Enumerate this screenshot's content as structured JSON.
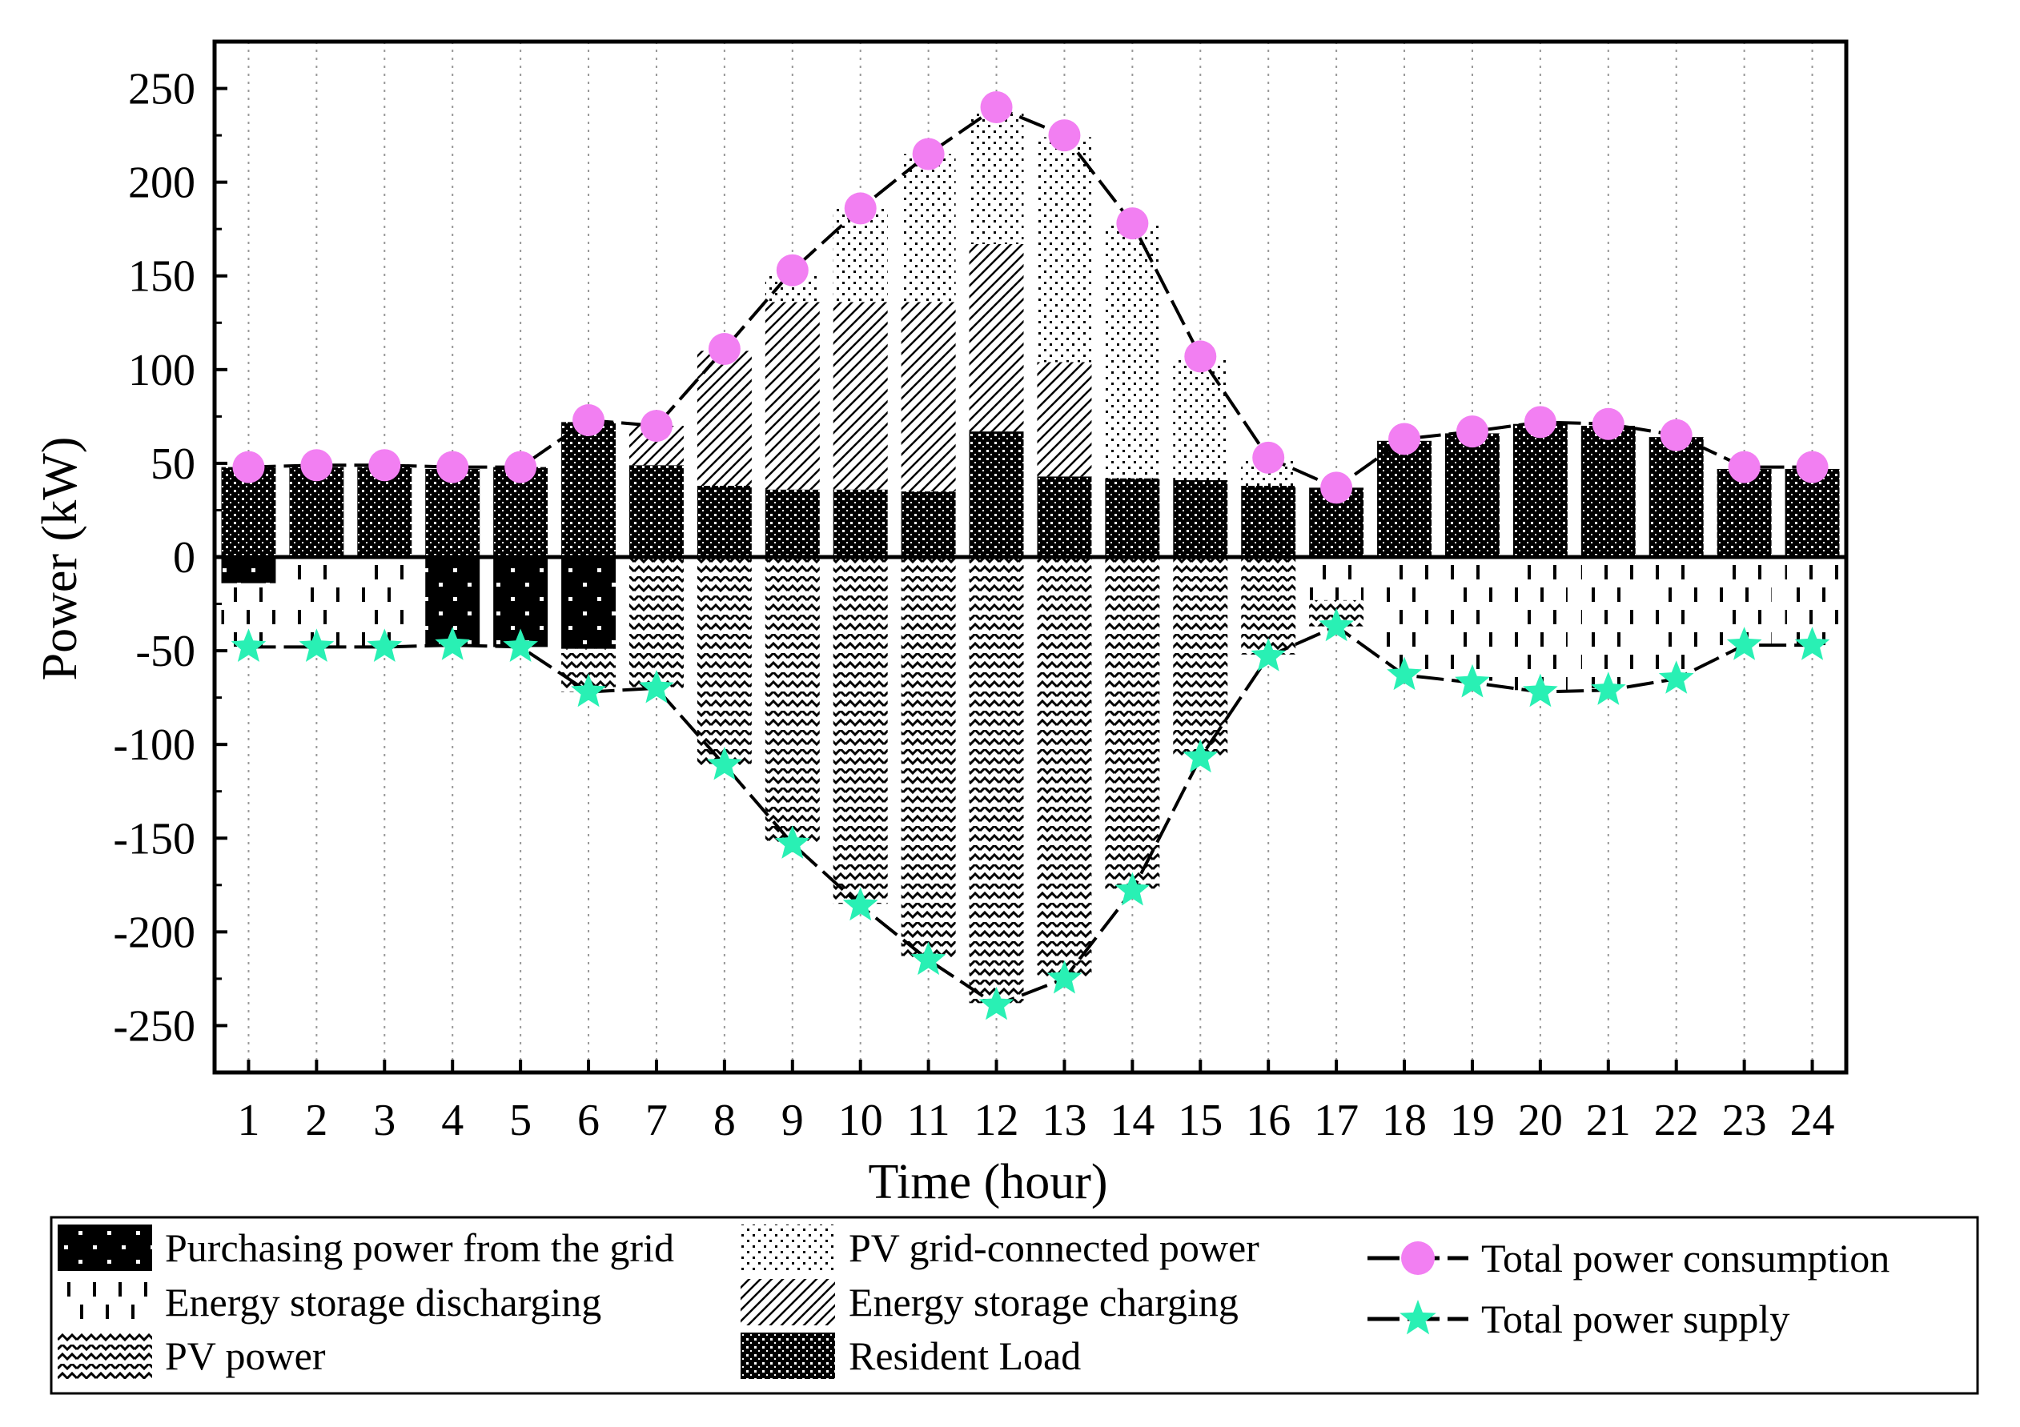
{
  "chart_data": {
    "type": "bar",
    "stacked": true,
    "xlabel": "Time (hour)",
    "ylabel": "Power (kW)",
    "ylim": [
      -275,
      275
    ],
    "yticks": [
      -250,
      -200,
      -150,
      -100,
      -50,
      0,
      50,
      100,
      150,
      200,
      250
    ],
    "categories": [
      "1",
      "2",
      "3",
      "4",
      "5",
      "6",
      "7",
      "8",
      "9",
      "10",
      "11",
      "12",
      "13",
      "14",
      "15",
      "16",
      "17",
      "18",
      "19",
      "20",
      "21",
      "22",
      "23",
      "24"
    ],
    "legend_position": "bottom",
    "series": [
      {
        "name": "Purchasing power from the grid",
        "pattern": "grid",
        "side": "negative",
        "values": [
          14,
          0,
          0,
          48,
          48,
          49,
          0,
          0,
          0,
          0,
          0,
          0,
          0,
          0,
          0,
          0,
          0,
          0,
          0,
          0,
          0,
          0,
          0,
          0
        ]
      },
      {
        "name": "Energy storage discharging",
        "pattern": "discharge",
        "side": "negative",
        "values": [
          34,
          48,
          48,
          0,
          0,
          0,
          0,
          0,
          0,
          0,
          0,
          0,
          0,
          0,
          0,
          0,
          23,
          62,
          66,
          71,
          70,
          64,
          47,
          47
        ]
      },
      {
        "name": "PV power",
        "pattern": "pv",
        "side": "negative",
        "values": [
          0,
          0,
          0,
          0,
          0,
          23,
          70,
          111,
          152,
          185,
          214,
          238,
          224,
          177,
          106,
          52,
          14,
          0,
          0,
          0,
          0,
          0,
          0,
          0
        ]
      },
      {
        "name": "Resident Load",
        "pattern": "load",
        "side": "positive",
        "values": [
          48,
          48,
          48,
          47,
          48,
          72,
          49,
          38,
          36,
          36,
          35,
          67,
          43,
          42,
          41,
          38,
          37,
          62,
          66,
          71,
          70,
          64,
          47,
          47
        ]
      },
      {
        "name": "Energy storage charging",
        "pattern": "charge",
        "side": "positive",
        "values": [
          0,
          0,
          0,
          0,
          0,
          0,
          21,
          72,
          100,
          100,
          101,
          100,
          61,
          0,
          0,
          0,
          0,
          0,
          0,
          0,
          0,
          0,
          0,
          0
        ]
      },
      {
        "name": "PV grid-connected power",
        "pattern": "pvgrid",
        "side": "positive",
        "values": [
          0,
          0,
          0,
          0,
          0,
          0,
          0,
          0,
          15,
          50,
          79,
          70,
          120,
          135,
          65,
          14,
          0,
          0,
          0,
          0,
          0,
          0,
          0,
          0
        ]
      }
    ],
    "lines": [
      {
        "name": "Total power consumption",
        "marker": "circle",
        "color": "#f27ff2",
        "values": [
          48,
          49,
          49,
          48,
          48,
          73,
          70,
          111,
          153,
          186,
          215,
          240,
          225,
          178,
          107,
          53,
          37,
          63,
          67,
          72,
          71,
          65,
          48,
          48
        ]
      },
      {
        "name": "Total power supply",
        "marker": "star",
        "color": "#29f0b4",
        "values": [
          -48,
          -48,
          -48,
          -47,
          -48,
          -72,
          -70,
          -111,
          -153,
          -186,
          -215,
          -239,
          -225,
          -178,
          -107,
          -53,
          -37,
          -63,
          -67,
          -72,
          -71,
          -65,
          -47,
          -47
        ]
      }
    ],
    "legend_entries": [
      {
        "label": "Purchasing power from the grid",
        "kind": "patch",
        "pattern": "grid"
      },
      {
        "label": "Energy storage discharging",
        "kind": "patch",
        "pattern": "discharge"
      },
      {
        "label": "PV power",
        "kind": "patch",
        "pattern": "pv"
      },
      {
        "label": "PV grid-connected power",
        "kind": "patch",
        "pattern": "pvgrid"
      },
      {
        "label": "Energy storage charging",
        "kind": "patch",
        "pattern": "charge"
      },
      {
        "label": "Resident Load",
        "kind": "patch",
        "pattern": "load"
      },
      {
        "label": "Total power consumption",
        "kind": "line",
        "marker": "circle",
        "color": "#f27ff2"
      },
      {
        "label": "Total power supply",
        "kind": "line",
        "marker": "star",
        "color": "#29f0b4"
      }
    ]
  }
}
